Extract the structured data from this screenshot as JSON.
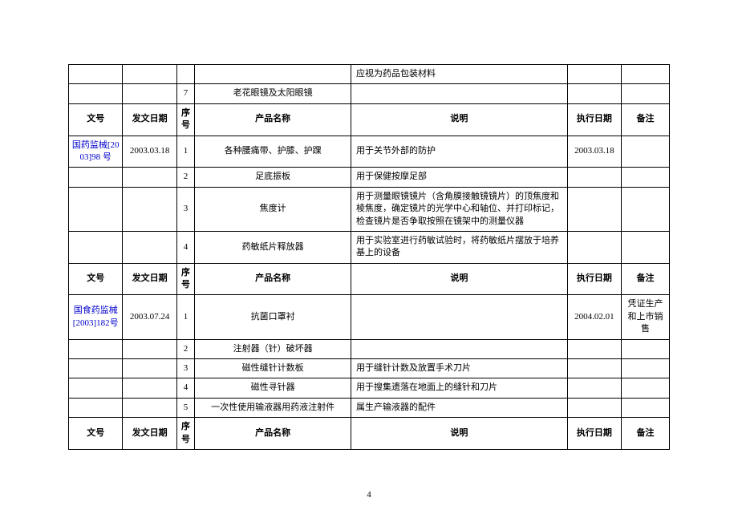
{
  "page_number": "4",
  "columns": {
    "docno": "文号",
    "date": "发文日期",
    "seq": "序号",
    "name": "产品名称",
    "desc": "说明",
    "exec": "执行日期",
    "remark": "备注"
  },
  "rows": {
    "r0_desc": "应视为药品包装材料",
    "r1_seq": "7",
    "r1_name": "老花眼镜及太阳眼镜",
    "g1_docno": "国药监械[2003]98 号",
    "g1_date": "2003.03.18",
    "g1_r1_seq": "1",
    "g1_r1_name": "各种腰痛带、护膝、护踝",
    "g1_r1_desc": "用于关节外部的防护",
    "g1_r1_exec": "2003.03.18",
    "g1_r2_seq": "2",
    "g1_r2_name": "足底振板",
    "g1_r2_desc": "用于保健按摩足部",
    "g1_r3_seq": "3",
    "g1_r3_name": "焦度计",
    "g1_r3_desc": "用于测量眼镜镜片（含角膜接触镜镜片）的顶焦度和棱焦度，确定镜片的光学中心和轴位、并打印标记，检查镜片是否争取按照在镜架中的测量仪器",
    "g1_r4_seq": "4",
    "g1_r4_name": "药敏纸片释放器",
    "g1_r4_desc": "用于实验室进行药敏试验时，将药敏纸片摆放于培养基上的设备",
    "g2_docno": "国食药监械[2003]182号",
    "g2_date": "2003.07.24",
    "g2_r1_seq": "1",
    "g2_r1_name": "抗菌口罩衬",
    "g2_r1_exec": "2004.02.01",
    "g2_r1_remark": "凭证生产和上市销售",
    "g2_r2_seq": "2",
    "g2_r2_name": "注射器（针）破坏器",
    "g2_r3_seq": "3",
    "g2_r3_name": "磁性缝针计数板",
    "g2_r3_desc": "用于缝针计数及放置手术刀片",
    "g2_r4_seq": "4",
    "g2_r4_name": "磁性寻针器",
    "g2_r4_desc": "用于搜集遗落在地面上的缝针和刀片",
    "g2_r5_seq": "5",
    "g2_r5_name": "一次性使用输液器用药液注射件",
    "g2_r5_desc": "属生产输液器的配件"
  }
}
